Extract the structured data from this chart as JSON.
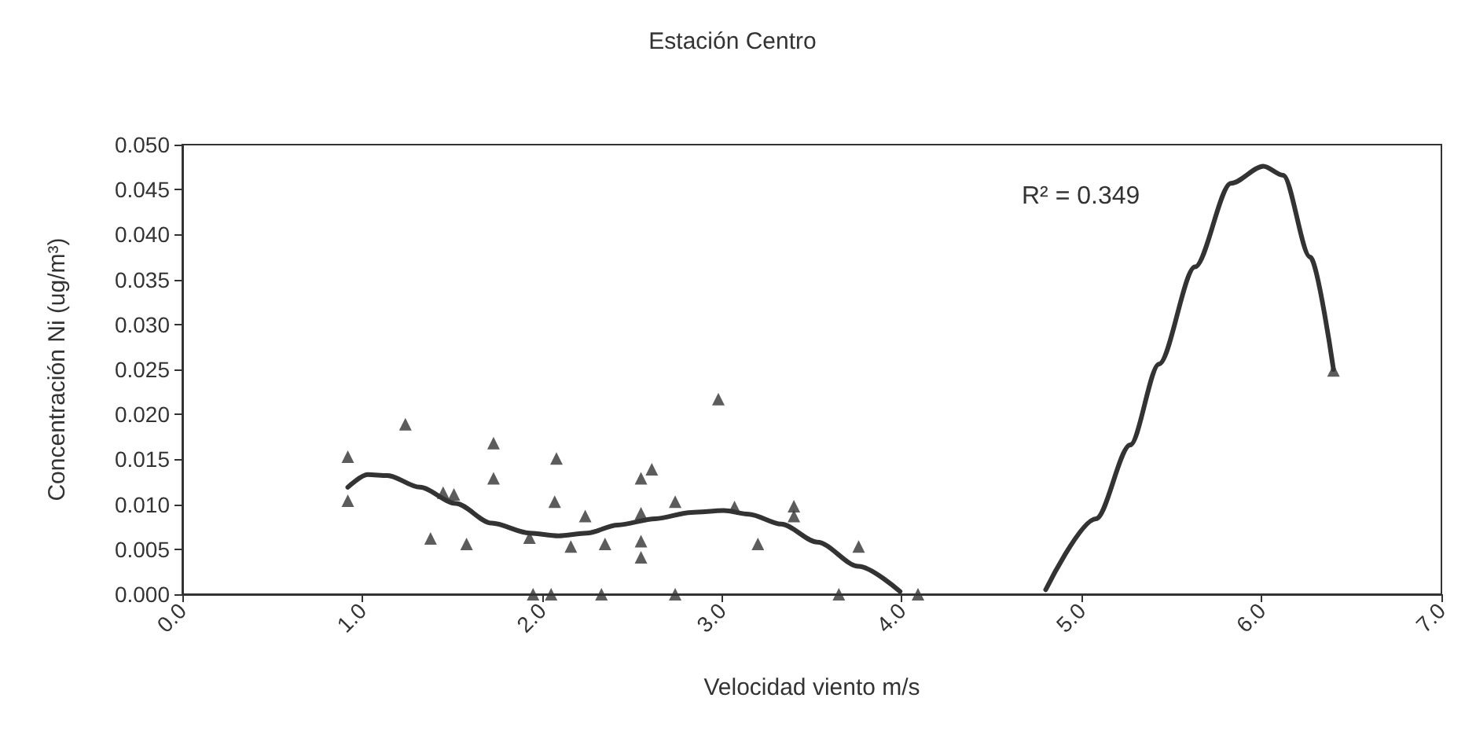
{
  "chart_data": {
    "type": "scatter",
    "title": "Estación Centro",
    "xlabel": "Velocidad viento m/s",
    "ylabel": "Concentración Ni (ug/m³)",
    "annotations": [
      "R² = 0.349"
    ],
    "xlim": [
      0,
      7
    ],
    "xticks": [
      {
        "value": 0,
        "label": "0.0"
      },
      {
        "value": 1,
        "label": "1.0"
      },
      {
        "value": 2,
        "label": "2.0"
      },
      {
        "value": 3,
        "label": "3.0"
      },
      {
        "value": 4,
        "label": "4.0"
      },
      {
        "value": 5,
        "label": "5.0"
      },
      {
        "value": 6,
        "label": "6.0"
      },
      {
        "value": 7,
        "label": "7.0"
      }
    ],
    "ylim": [
      0,
      0.05
    ],
    "yticks": [
      {
        "value": 0,
        "label": "0.000"
      },
      {
        "value": 0.005,
        "label": "0.005"
      },
      {
        "value": 0.01,
        "label": "0.010"
      },
      {
        "value": 0.015,
        "label": "0.015"
      },
      {
        "value": 0.02,
        "label": "0.020"
      },
      {
        "value": 0.025,
        "label": "0.025"
      },
      {
        "value": 0.03,
        "label": "0.030"
      },
      {
        "value": 0.035,
        "label": "0.035"
      },
      {
        "value": 0.04,
        "label": "0.040"
      },
      {
        "value": 0.045,
        "label": "0.045"
      },
      {
        "value": 0.05,
        "label": "0.050"
      }
    ],
    "grid": false,
    "series": [
      {
        "color": "#333333",
        "marker": "triangle",
        "x": [
          0.92,
          0.92,
          1.24,
          1.38,
          1.45,
          1.51,
          1.58,
          1.73,
          1.73,
          1.93,
          2.08,
          2.07,
          2.24,
          2.16,
          2.35,
          1.95,
          2.05,
          2.33,
          2.55,
          2.61,
          2.55,
          2.55,
          2.55,
          2.74,
          2.98,
          3.07,
          3.2,
          3.4,
          3.4,
          3.76,
          2.74,
          3.65,
          4.09,
          6.4
        ],
        "values": [
          0.0153,
          0.0104,
          0.0189,
          0.0062,
          0.0113,
          0.0111,
          0.0056,
          0.0168,
          0.0129,
          0.0063,
          0.0151,
          0.0103,
          0.0087,
          0.0053,
          0.0056,
          0,
          0,
          0,
          0.0129,
          0.0139,
          0.009,
          0.0059,
          0.0041,
          0.0103,
          0.0217,
          0.0097,
          0.0056,
          0.0098,
          0.0087,
          0.0053,
          0,
          0,
          0,
          0.0249
        ]
      },
      {
        "type": "line",
        "color": "#333333",
        "marker": "none",
        "line_style": "solid",
        "x": [
          0.92,
          1.03,
          1.14,
          1.32,
          1.52,
          1.72,
          1.93,
          2.09,
          2.25,
          2.42,
          2.63,
          2.83,
          3.01,
          3.15,
          3.33,
          3.53,
          3.76,
          3.99,
          4.4,
          4.8,
          5.08,
          5.27,
          5.43,
          5.63,
          5.83,
          6.01,
          6.12,
          6.27,
          6.4
        ],
        "values": [
          0.0119,
          0.0133,
          0.0132,
          0.0119,
          0.0101,
          0.0079,
          0.0068,
          0.0065,
          0.0068,
          0.0077,
          0.0084,
          0.0091,
          0.0093,
          0.0089,
          0.0078,
          0.0058,
          0.0031,
          0.0003,
          null,
          0.0005,
          0.0084,
          0.0166,
          0.0256,
          0.0364,
          0.0457,
          0.0476,
          0.0466,
          0.0375,
          0.025
        ]
      }
    ]
  }
}
